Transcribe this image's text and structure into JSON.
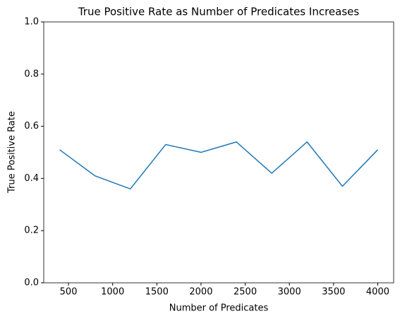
{
  "chart_data": {
    "type": "line",
    "title": "True Positive Rate as Number of Predicates Increases",
    "x_label": "Number of Predicates",
    "y_label": "True Positive Rate",
    "x": [
      400,
      800,
      1200,
      1600,
      2000,
      2400,
      2800,
      3200,
      3600,
      4000
    ],
    "series": [
      {
        "name": "True Positive Rate",
        "color": "#1f77b4",
        "values": [
          0.51,
          0.41,
          0.36,
          0.53,
          0.5,
          0.54,
          0.42,
          0.54,
          0.37,
          0.51
        ]
      }
    ],
    "xlim": [
      220,
      4180
    ],
    "ylim": [
      0,
      1
    ],
    "xticks": [
      500,
      1000,
      1500,
      2000,
      2500,
      3000,
      3500,
      4000
    ],
    "yticks": [
      {
        "value": 0,
        "label": "0.0"
      },
      0.2,
      0.4,
      0.6,
      0.8,
      {
        "value": 1,
        "label": "1.0"
      }
    ],
    "grid": false
  }
}
